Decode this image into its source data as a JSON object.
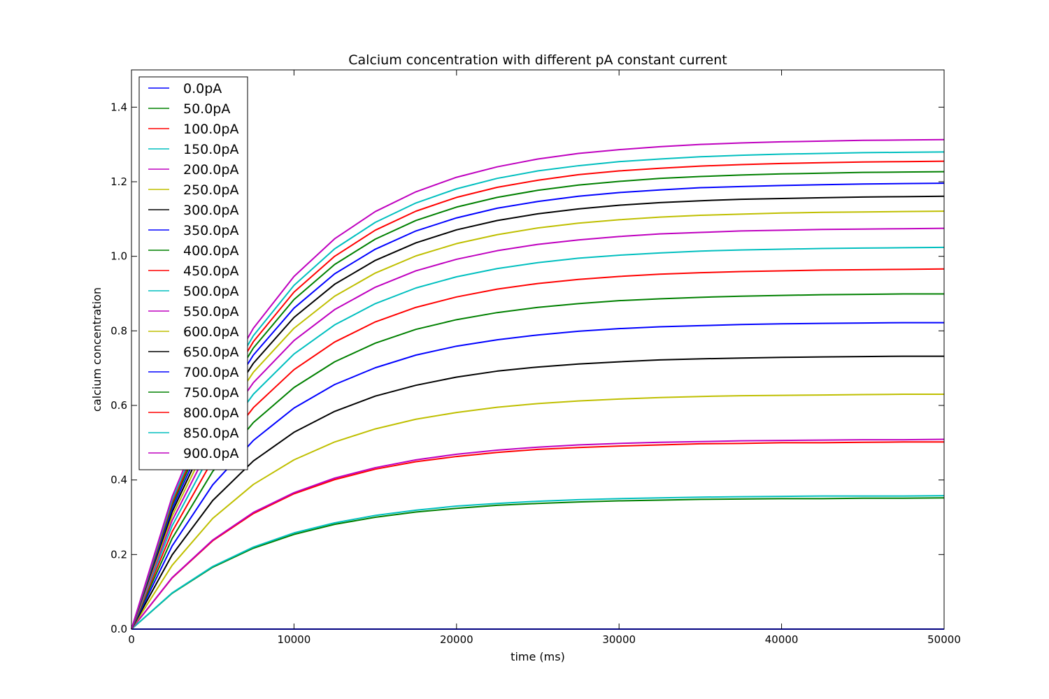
{
  "chart_data": {
    "type": "line",
    "title": "Calcium concentration with different pA constant current",
    "xlabel": "time (ms)",
    "ylabel": "calcium concentration",
    "xlim": [
      0,
      50000
    ],
    "ylim": [
      0,
      1.5
    ],
    "xticks": [
      0,
      10000,
      20000,
      30000,
      40000,
      50000
    ],
    "xtick_labels": [
      "0",
      "10000",
      "20000",
      "30000",
      "40000",
      "50000"
    ],
    "yticks": [
      0.0,
      0.2,
      0.4,
      0.6,
      0.8,
      1.0,
      1.2,
      1.4
    ],
    "ytick_labels": [
      "0.0",
      "0.2",
      "0.4",
      "0.6",
      "0.8",
      "1.0",
      "1.2",
      "1.4"
    ],
    "grid": false,
    "legend_position": "upper-left",
    "x": [
      0,
      2500,
      5000,
      7500,
      10000,
      12500,
      15000,
      17500,
      20000,
      22500,
      25000,
      27500,
      30000,
      32500,
      35000,
      37500,
      40000,
      42500,
      45000,
      47500,
      50000
    ],
    "series": [
      {
        "name": "0.0pA",
        "color": "#0000ff",
        "values": [
          0,
          0,
          0,
          0,
          0,
          0,
          0,
          0,
          0,
          0,
          0,
          0,
          0,
          0,
          0,
          0,
          0,
          0,
          0,
          0,
          0
        ]
      },
      {
        "name": "50.0pA",
        "color": "#008000",
        "values": [
          0,
          0.096,
          0.166,
          0.217,
          0.254,
          0.281,
          0.3,
          0.314,
          0.324,
          0.332,
          0.337,
          0.341,
          0.344,
          0.346,
          0.348,
          0.349,
          0.35,
          0.35,
          0.351,
          0.351,
          0.352
        ]
      },
      {
        "name": "100.0pA",
        "color": "#ff0000",
        "values": [
          0,
          0.137,
          0.237,
          0.31,
          0.363,
          0.401,
          0.429,
          0.449,
          0.463,
          0.474,
          0.482,
          0.487,
          0.491,
          0.494,
          0.497,
          0.498,
          0.5,
          0.5,
          0.501,
          0.502,
          0.502
        ]
      },
      {
        "name": "150.0pA",
        "color": "#00bfbf",
        "values": [
          0,
          0.097,
          0.168,
          0.22,
          0.258,
          0.285,
          0.305,
          0.319,
          0.33,
          0.337,
          0.343,
          0.347,
          0.35,
          0.352,
          0.354,
          0.355,
          0.356,
          0.357,
          0.357,
          0.357,
          0.358
        ]
      },
      {
        "name": "200.0pA",
        "color": "#bf00bf",
        "values": [
          0,
          0.138,
          0.239,
          0.313,
          0.366,
          0.405,
          0.433,
          0.454,
          0.469,
          0.48,
          0.488,
          0.494,
          0.498,
          0.501,
          0.503,
          0.505,
          0.506,
          0.507,
          0.508,
          0.508,
          0.509
        ]
      },
      {
        "name": "250.0pA",
        "color": "#bfbf00",
        "values": [
          0,
          0.171,
          0.297,
          0.388,
          0.454,
          0.502,
          0.537,
          0.563,
          0.581,
          0.595,
          0.605,
          0.612,
          0.617,
          0.621,
          0.624,
          0.626,
          0.627,
          0.628,
          0.629,
          0.63,
          0.63
        ]
      },
      {
        "name": "300.0pA",
        "color": "#000000",
        "values": [
          0,
          0.199,
          0.345,
          0.451,
          0.528,
          0.584,
          0.625,
          0.654,
          0.676,
          0.692,
          0.703,
          0.711,
          0.717,
          0.722,
          0.725,
          0.727,
          0.729,
          0.73,
          0.731,
          0.732,
          0.732
        ]
      },
      {
        "name": "350.0pA",
        "color": "#0000ff",
        "values": [
          0,
          0.223,
          0.387,
          0.506,
          0.593,
          0.656,
          0.701,
          0.735,
          0.759,
          0.776,
          0.789,
          0.799,
          0.806,
          0.811,
          0.814,
          0.817,
          0.819,
          0.82,
          0.821,
          0.822,
          0.822
        ]
      },
      {
        "name": "400.0pA",
        "color": "#008000",
        "values": [
          0,
          0.243,
          0.423,
          0.554,
          0.648,
          0.717,
          0.767,
          0.804,
          0.83,
          0.849,
          0.863,
          0.873,
          0.881,
          0.886,
          0.89,
          0.893,
          0.895,
          0.897,
          0.898,
          0.899,
          0.899
        ]
      },
      {
        "name": "450.0pA",
        "color": "#ff0000",
        "values": [
          0,
          0.261,
          0.454,
          0.594,
          0.696,
          0.77,
          0.824,
          0.863,
          0.891,
          0.912,
          0.927,
          0.938,
          0.946,
          0.952,
          0.956,
          0.959,
          0.961,
          0.963,
          0.964,
          0.965,
          0.966
        ]
      },
      {
        "name": "500.0pA",
        "color": "#00bfbf",
        "values": [
          0,
          0.277,
          0.481,
          0.63,
          0.738,
          0.816,
          0.873,
          0.915,
          0.945,
          0.967,
          0.983,
          0.995,
          1.003,
          1.009,
          1.014,
          1.017,
          1.019,
          1.021,
          1.022,
          1.023,
          1.024
        ]
      },
      {
        "name": "550.0pA",
        "color": "#bf00bf",
        "values": [
          0,
          0.291,
          0.505,
          0.661,
          0.774,
          0.857,
          0.917,
          0.961,
          0.992,
          1.015,
          1.032,
          1.044,
          1.053,
          1.06,
          1.064,
          1.068,
          1.07,
          1.072,
          1.073,
          1.074,
          1.075
        ]
      },
      {
        "name": "600.0pA",
        "color": "#bfbf00",
        "values": [
          0,
          0.303,
          0.526,
          0.689,
          0.807,
          0.893,
          0.955,
          1.001,
          1.034,
          1.058,
          1.076,
          1.089,
          1.098,
          1.105,
          1.11,
          1.113,
          1.116,
          1.118,
          1.119,
          1.12,
          1.121
        ]
      },
      {
        "name": "650.0pA",
        "color": "#000000",
        "values": [
          0,
          0.314,
          0.545,
          0.713,
          0.836,
          0.925,
          0.989,
          1.036,
          1.071,
          1.096,
          1.114,
          1.127,
          1.137,
          1.144,
          1.149,
          1.153,
          1.155,
          1.157,
          1.159,
          1.16,
          1.161
        ]
      },
      {
        "name": "700.0pA",
        "color": "#0000ff",
        "values": [
          0,
          0.323,
          0.562,
          0.735,
          0.861,
          0.953,
          1.019,
          1.068,
          1.103,
          1.129,
          1.147,
          1.161,
          1.171,
          1.178,
          1.184,
          1.187,
          1.19,
          1.192,
          1.194,
          1.195,
          1.196
        ]
      },
      {
        "name": "750.0pA",
        "color": "#008000",
        "values": [
          0,
          0.332,
          0.576,
          0.754,
          0.884,
          0.978,
          1.046,
          1.096,
          1.132,
          1.158,
          1.177,
          1.191,
          1.201,
          1.209,
          1.214,
          1.218,
          1.221,
          1.223,
          1.225,
          1.226,
          1.227
        ]
      },
      {
        "name": "800.0pA",
        "color": "#ff0000",
        "values": [
          0,
          0.339,
          0.589,
          0.771,
          0.904,
          1.0,
          1.07,
          1.121,
          1.158,
          1.185,
          1.204,
          1.219,
          1.229,
          1.236,
          1.242,
          1.246,
          1.249,
          1.251,
          1.253,
          1.254,
          1.255
        ]
      },
      {
        "name": "850.0pA",
        "color": "#00bfbf",
        "values": [
          0,
          0.346,
          0.601,
          0.787,
          0.922,
          1.02,
          1.091,
          1.143,
          1.181,
          1.209,
          1.229,
          1.243,
          1.254,
          1.261,
          1.267,
          1.271,
          1.274,
          1.276,
          1.278,
          1.279,
          1.28
        ]
      },
      {
        "name": "900.0pA",
        "color": "#bf00bf",
        "values": [
          0,
          0.355,
          0.617,
          0.807,
          0.946,
          1.047,
          1.12,
          1.173,
          1.212,
          1.24,
          1.261,
          1.276,
          1.286,
          1.294,
          1.3,
          1.304,
          1.307,
          1.309,
          1.311,
          1.312,
          1.313
        ]
      }
    ]
  }
}
